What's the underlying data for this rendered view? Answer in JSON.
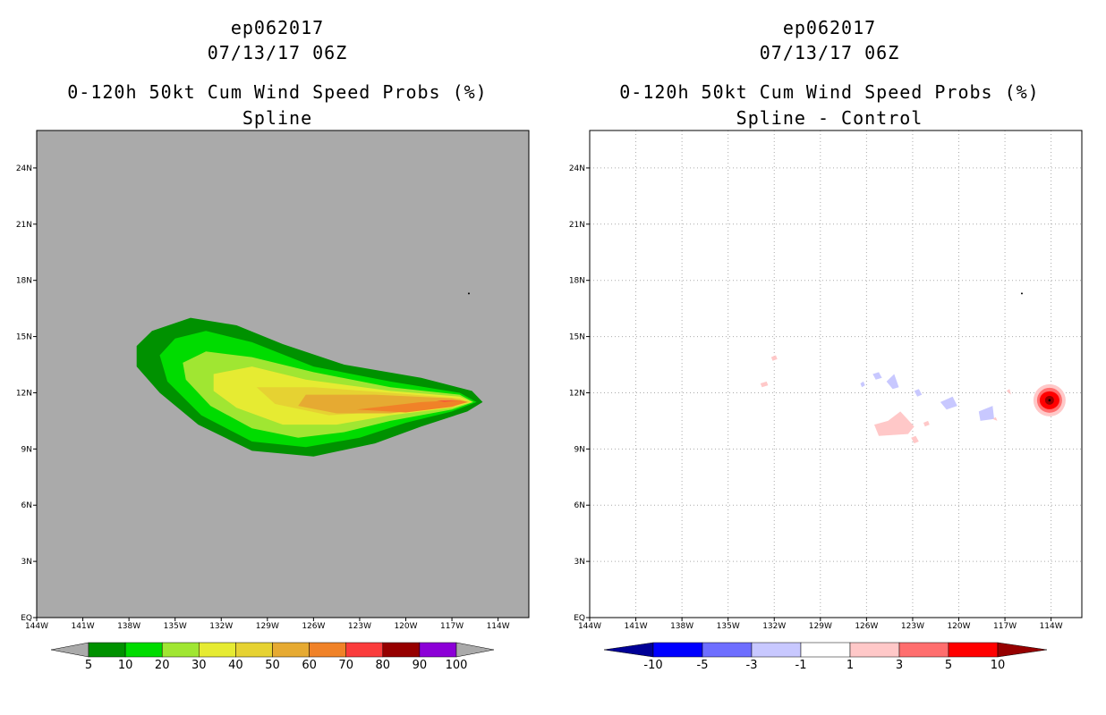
{
  "panels": {
    "left": {
      "title_line1": "ep062017",
      "title_line2": "07/13/17 06Z",
      "title_line3": "0-120h 50kt Cum Wind Speed Probs (%)",
      "title_line4": "Spline"
    },
    "right": {
      "title_line1": "ep062017",
      "title_line2": "07/13/17 06Z",
      "title_line3": "0-120h 50kt Cum Wind Speed Probs (%)",
      "title_line4": "Spline - Control"
    }
  },
  "chart_data": [
    {
      "type": "heatmap",
      "title": "0-120h 50kt Cum Wind Speed Probs (%) Spline",
      "x_ticks": [
        "144W",
        "141W",
        "138W",
        "135W",
        "132W",
        "129W",
        "126W",
        "123W",
        "120W",
        "117W",
        "114W"
      ],
      "y_ticks": [
        "EQ",
        "3N",
        "6N",
        "9N",
        "12N",
        "15N",
        "18N",
        "21N",
        "24N"
      ],
      "xlim": [
        -144,
        -112
      ],
      "ylim": [
        0,
        26
      ],
      "background_color": "#aaaaaa",
      "colorbar": {
        "levels": [
          "5",
          "10",
          "20",
          "30",
          "40",
          "50",
          "60",
          "70",
          "80",
          "90",
          "100"
        ],
        "colors": [
          "#009100",
          "#00dc00",
          "#a0e632",
          "#e6eb32",
          "#e6d232",
          "#e6aa32",
          "#f08228",
          "#fa3c3c",
          "#960000",
          "#8c00d7"
        ],
        "under_color": "#aaaaaa",
        "over_color": "#aaaaaa"
      },
      "contours": [
        {
          "level": 5,
          "color": "#009100",
          "points": [
            [
              -137.5,
              14.5
            ],
            [
              -136.5,
              15.3
            ],
            [
              -134,
              16.0
            ],
            [
              -131,
              15.6
            ],
            [
              -128,
              14.6
            ],
            [
              -124,
              13.5
            ],
            [
              -119,
              12.8
            ],
            [
              -115.7,
              12.1
            ],
            [
              -115,
              11.5
            ],
            [
              -116,
              11.0
            ],
            [
              -119,
              10.2
            ],
            [
              -122,
              9.3
            ],
            [
              -126,
              8.6
            ],
            [
              -130,
              8.9
            ],
            [
              -133.5,
              10.3
            ],
            [
              -136,
              12.0
            ],
            [
              -137.5,
              13.4
            ]
          ]
        },
        {
          "level": 10,
          "color": "#00dc00",
          "points": [
            [
              -136,
              14.0
            ],
            [
              -135,
              14.9
            ],
            [
              -133,
              15.3
            ],
            [
              -130,
              14.7
            ],
            [
              -126,
              13.4
            ],
            [
              -121,
              12.6
            ],
            [
              -116.5,
              12.0
            ],
            [
              -115.4,
              11.5
            ],
            [
              -117,
              11.0
            ],
            [
              -120,
              10.4
            ],
            [
              -123,
              9.6
            ],
            [
              -126.5,
              9.1
            ],
            [
              -130,
              9.4
            ],
            [
              -133.3,
              10.8
            ],
            [
              -135.5,
              12.6
            ]
          ]
        },
        {
          "level": 20,
          "color": "#a0e632",
          "points": [
            [
              -134.5,
              13.6
            ],
            [
              -133,
              14.2
            ],
            [
              -130,
              13.9
            ],
            [
              -126,
              13.1
            ],
            [
              -121,
              12.3
            ],
            [
              -116.5,
              11.9
            ],
            [
              -115.6,
              11.5
            ],
            [
              -117,
              11.1
            ],
            [
              -121,
              10.5
            ],
            [
              -124,
              9.9
            ],
            [
              -127,
              9.6
            ],
            [
              -130,
              10.1
            ],
            [
              -132.7,
              11.3
            ],
            [
              -134.3,
              12.7
            ]
          ]
        },
        {
          "level": 30,
          "color": "#e6eb32",
          "points": [
            [
              -132.5,
              13.0
            ],
            [
              -130,
              13.4
            ],
            [
              -126.5,
              12.7
            ],
            [
              -121,
              12.1
            ],
            [
              -116.5,
              11.8
            ],
            [
              -115.7,
              11.5
            ],
            [
              -117,
              11.2
            ],
            [
              -121,
              10.8
            ],
            [
              -124.5,
              10.3
            ],
            [
              -128,
              10.3
            ],
            [
              -131,
              11.2
            ],
            [
              -132.5,
              12.1
            ]
          ]
        },
        {
          "level": 40,
          "color": "#e6d232",
          "points": [
            [
              -129.7,
              12.3
            ],
            [
              -126,
              12.3
            ],
            [
              -121,
              12.0
            ],
            [
              -116.5,
              11.7
            ],
            [
              -115.8,
              11.5
            ],
            [
              -117,
              11.3
            ],
            [
              -121,
              11.0
            ],
            [
              -125,
              10.8
            ],
            [
              -128.5,
              11.4
            ]
          ]
        },
        {
          "level": 50,
          "color": "#e6aa32",
          "points": [
            [
              -126.5,
              11.9
            ],
            [
              -122,
              11.9
            ],
            [
              -117,
              11.7
            ],
            [
              -115.9,
              11.5
            ],
            [
              -117,
              11.3
            ],
            [
              -121,
              10.9
            ],
            [
              -124.5,
              10.9
            ],
            [
              -127,
              11.3
            ]
          ]
        },
        {
          "level": 60,
          "color": "#f08228",
          "points": [
            [
              -123.2,
              11.1
            ],
            [
              -119,
              11.5
            ],
            [
              -116.5,
              11.6
            ],
            [
              -116.0,
              11.5
            ],
            [
              -117,
              11.25
            ],
            [
              -120,
              10.95
            ]
          ]
        },
        {
          "level": 70,
          "color": "#fa3c3c",
          "points": [
            [
              -118.0,
              11.58
            ],
            [
              -116.6,
              11.58
            ],
            [
              -117.5,
              11.52
            ]
          ]
        }
      ],
      "markers": [
        {
          "x": -115.9,
          "y": 17.3,
          "label": ""
        }
      ]
    },
    {
      "type": "heatmap",
      "title": "0-120h 50kt Cum Wind Speed Probs (%) Spline - Control",
      "x_ticks": [
        "144W",
        "141W",
        "138W",
        "135W",
        "132W",
        "129W",
        "126W",
        "123W",
        "120W",
        "117W",
        "114W"
      ],
      "y_ticks": [
        "EQ",
        "3N",
        "6N",
        "9N",
        "12N",
        "15N",
        "18N",
        "21N",
        "24N"
      ],
      "xlim": [
        -144,
        -112
      ],
      "ylim": [
        0,
        26
      ],
      "background_color": "#ffffff",
      "grid": true,
      "colorbar": {
        "levels": [
          "-10",
          "-5",
          "-3",
          "-1",
          "1",
          "3",
          "5",
          "10"
        ],
        "colors": [
          "#0000ff",
          "#6e6eff",
          "#c8c8ff",
          "#ffffff",
          "#ffc8c8",
          "#ff6e6e",
          "#ff0000"
        ],
        "under_color": "#000096",
        "over_color": "#960000"
      },
      "blobs": [
        {
          "value": 3,
          "color": "#ffc8c8",
          "points": [
            [
              -132.2,
              13.9
            ],
            [
              -131.9,
              14.0
            ],
            [
              -131.8,
              13.8
            ],
            [
              -132.1,
              13.7
            ]
          ]
        },
        {
          "value": 2,
          "color": "#ffc8c8",
          "points": [
            [
              -132.9,
              12.5
            ],
            [
              -132.5,
              12.6
            ],
            [
              -132.4,
              12.4
            ],
            [
              -132.8,
              12.3
            ]
          ]
        },
        {
          "value": -1,
          "color": "#c8c8ff",
          "points": [
            [
              -126.4,
              12.5
            ],
            [
              -126.2,
              12.6
            ],
            [
              -126.1,
              12.4
            ],
            [
              -126.3,
              12.3
            ]
          ]
        },
        {
          "value": -2,
          "color": "#c8c8ff",
          "points": [
            [
              -125.6,
              13.0
            ],
            [
              -125.2,
              13.1
            ],
            [
              -125.0,
              12.8
            ],
            [
              -125.4,
              12.7
            ]
          ]
        },
        {
          "value": -2,
          "color": "#c8c8ff",
          "points": [
            [
              -124.7,
              12.6
            ],
            [
              -124.2,
              13.0
            ],
            [
              -123.9,
              12.3
            ],
            [
              -124.3,
              12.2
            ]
          ]
        },
        {
          "value": -1,
          "color": "#c8c8ff",
          "points": [
            [
              -122.9,
              12.1
            ],
            [
              -122.6,
              12.2
            ],
            [
              -122.4,
              11.9
            ],
            [
              -122.7,
              11.8
            ]
          ]
        },
        {
          "value": -2,
          "color": "#c8c8ff",
          "points": [
            [
              -121.2,
              11.5
            ],
            [
              -120.4,
              11.8
            ],
            [
              -120.1,
              11.3
            ],
            [
              -120.8,
              11.1
            ]
          ]
        },
        {
          "value": -2,
          "color": "#c8c8ff",
          "points": [
            [
              -118.7,
              11.0
            ],
            [
              -117.8,
              11.3
            ],
            [
              -117.7,
              10.6
            ],
            [
              -118.6,
              10.5
            ]
          ]
        },
        {
          "value": 2,
          "color": "#ffc8c8",
          "points": [
            [
              -125.5,
              10.3
            ],
            [
              -124.6,
              10.5
            ],
            [
              -123.8,
              11.0
            ],
            [
              -122.9,
              10.2
            ],
            [
              -123.3,
              9.8
            ],
            [
              -125.2,
              9.7
            ]
          ]
        },
        {
          "value": 1,
          "color": "#ffc8c8",
          "points": [
            [
              -122.3,
              10.4
            ],
            [
              -122.0,
              10.5
            ],
            [
              -121.9,
              10.3
            ],
            [
              -122.2,
              10.2
            ]
          ]
        },
        {
          "value": 1,
          "color": "#ffc8c8",
          "points": [
            [
              -123.1,
              9.6
            ],
            [
              -122.8,
              9.7
            ],
            [
              -122.6,
              9.4
            ],
            [
              -122.9,
              9.3
            ]
          ]
        },
        {
          "value": 1,
          "color": "#ffc8c8",
          "points": [
            [
              -117.8,
              10.6
            ],
            [
              -117.6,
              10.7
            ],
            [
              -117.5,
              10.5
            ]
          ]
        },
        {
          "value": 1,
          "color": "#ffc8c8",
          "points": [
            [
              -116.9,
              12.1
            ],
            [
              -116.7,
              12.2
            ],
            [
              -116.6,
              11.9
            ]
          ]
        }
      ],
      "peak": {
        "x": -114.1,
        "y": 11.6,
        "rings": [
          {
            "value": 3,
            "color": "#ffc8c8",
            "rx": 18,
            "ry": 18
          },
          {
            "value": 5,
            "color": "#ff6e6e",
            "rx": 14,
            "ry": 14
          },
          {
            "value": 8,
            "color": "#ff0000",
            "rx": 11,
            "ry": 10
          },
          {
            "value": 12,
            "color": "#960000",
            "rx": 5,
            "ry": 5
          }
        ]
      },
      "markers": [
        {
          "x": -115.9,
          "y": 17.3,
          "label": ""
        }
      ]
    }
  ]
}
